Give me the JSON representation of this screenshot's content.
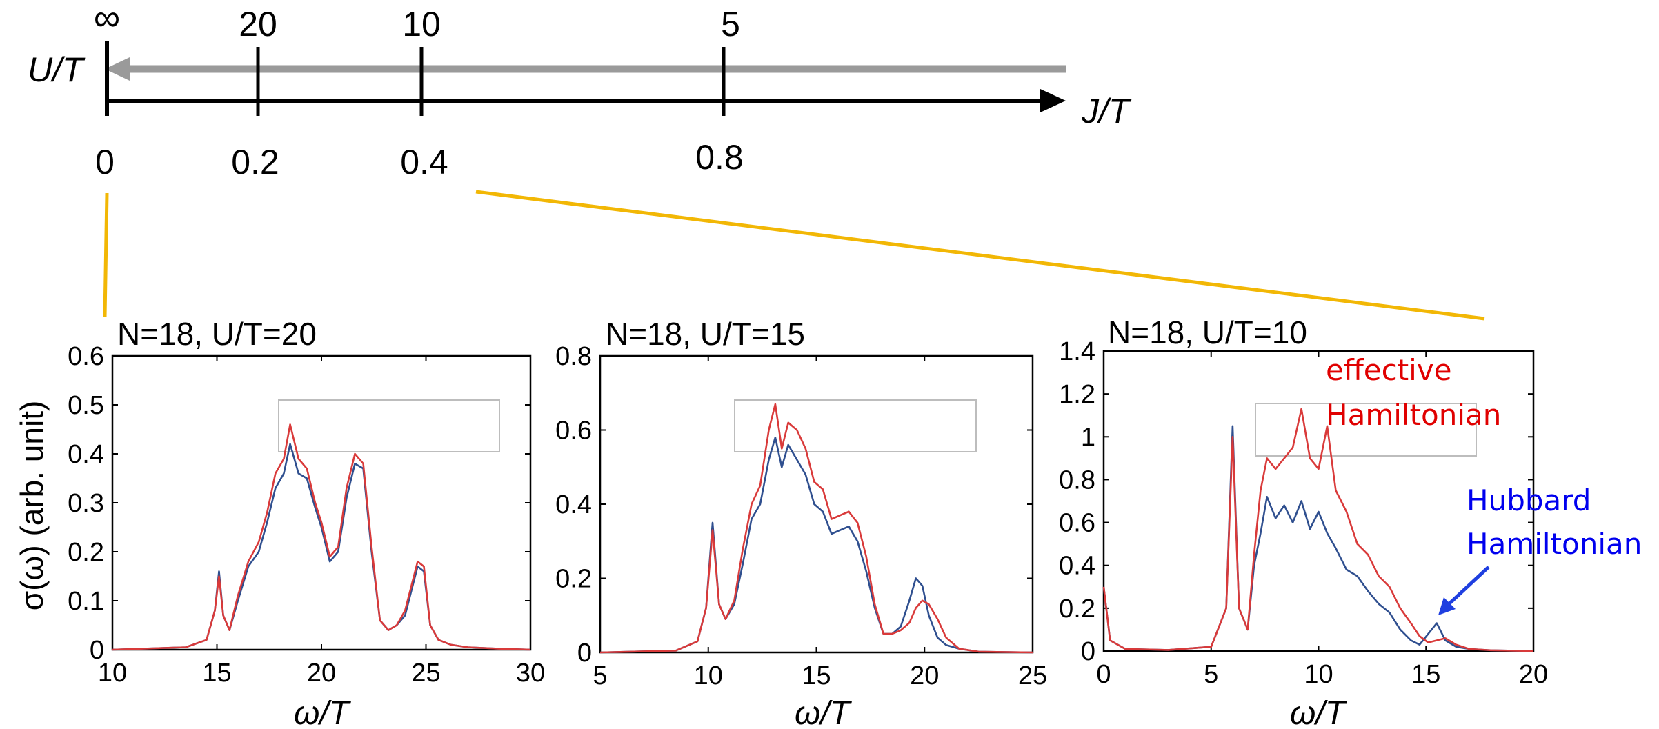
{
  "scale_bar": {
    "ut_label": "U/T",
    "jt_label": "J/T",
    "ut_ticks": [
      "∞",
      "20",
      "10",
      "5"
    ],
    "jt_ticks": [
      "0",
      "0.2",
      "0.4",
      "0.8"
    ],
    "ut_arrow_color": "#9a9a9a",
    "jt_arrow_color": "#000000",
    "connector_color": "#f2b705"
  },
  "colors": {
    "effective": "#d93a3a",
    "hubbard": "#2f4f8f",
    "annotation_effective": "#e00000",
    "annotation_hubbard": "#0000ee",
    "arrow": "#1f3fe0"
  },
  "ylabel": "σ(ω) (arb. unit)",
  "annotations": {
    "effective": [
      "effective",
      "Hamiltonian"
    ],
    "hubbard": [
      "Hubbard",
      "Hamiltonian"
    ]
  },
  "chart_data": [
    {
      "type": "line",
      "title": "N=18, U/T=20",
      "xlabel": "ω/T",
      "ylabel": "σ(ω) (arb. unit)",
      "xlim": [
        10,
        30
      ],
      "ylim": [
        0,
        0.6
      ],
      "xticks": [
        10,
        15,
        20,
        25,
        30
      ],
      "yticks": [
        0,
        0.1,
        0.2,
        0.3,
        0.4,
        0.5,
        0.6
      ],
      "series": [
        {
          "key": "hubbard",
          "x": [
            10,
            13.5,
            14.5,
            14.9,
            15.1,
            15.3,
            15.6,
            16.0,
            16.5,
            17.0,
            17.4,
            17.8,
            18.2,
            18.5,
            18.9,
            19.3,
            19.7,
            20.0,
            20.4,
            20.8,
            21.2,
            21.6,
            22.0,
            22.4,
            22.8,
            23.2,
            23.6,
            24.0,
            24.3,
            24.6,
            24.9,
            25.2,
            25.6,
            26.2,
            27.0,
            28.5,
            30
          ],
          "y": [
            0.0,
            0.005,
            0.02,
            0.08,
            0.16,
            0.07,
            0.04,
            0.1,
            0.17,
            0.2,
            0.26,
            0.33,
            0.36,
            0.42,
            0.36,
            0.35,
            0.29,
            0.25,
            0.18,
            0.2,
            0.31,
            0.38,
            0.37,
            0.2,
            0.06,
            0.04,
            0.05,
            0.07,
            0.12,
            0.17,
            0.16,
            0.05,
            0.02,
            0.01,
            0.005,
            0.002,
            0.0
          ]
        },
        {
          "key": "effective",
          "x": [
            10,
            13.5,
            14.5,
            14.9,
            15.1,
            15.3,
            15.6,
            16.0,
            16.5,
            17.0,
            17.4,
            17.8,
            18.2,
            18.5,
            18.9,
            19.3,
            19.7,
            20.0,
            20.4,
            20.8,
            21.2,
            21.6,
            22.0,
            22.4,
            22.8,
            23.2,
            23.6,
            24.0,
            24.3,
            24.6,
            24.9,
            25.2,
            25.6,
            26.2,
            27.0,
            28.5,
            30
          ],
          "y": [
            0.0,
            0.005,
            0.02,
            0.08,
            0.15,
            0.07,
            0.04,
            0.11,
            0.18,
            0.22,
            0.28,
            0.36,
            0.39,
            0.46,
            0.39,
            0.37,
            0.3,
            0.26,
            0.19,
            0.21,
            0.33,
            0.4,
            0.38,
            0.21,
            0.06,
            0.04,
            0.05,
            0.08,
            0.13,
            0.18,
            0.17,
            0.05,
            0.02,
            0.01,
            0.005,
            0.002,
            0.0
          ]
        }
      ]
    },
    {
      "type": "line",
      "title": "N=18, U/T=15",
      "xlabel": "ω/T",
      "ylabel": "",
      "xlim": [
        5,
        25
      ],
      "ylim": [
        0,
        0.8
      ],
      "xticks": [
        5,
        10,
        15,
        20,
        25
      ],
      "yticks": [
        0,
        0.2,
        0.4,
        0.6,
        0.8
      ],
      "series": [
        {
          "key": "hubbard",
          "x": [
            5,
            8.5,
            9.5,
            9.9,
            10.2,
            10.5,
            10.8,
            11.2,
            11.6,
            12.0,
            12.4,
            12.8,
            13.1,
            13.4,
            13.7,
            14.1,
            14.5,
            14.9,
            15.3,
            15.7,
            16.1,
            16.5,
            16.9,
            17.3,
            17.7,
            18.1,
            18.5,
            18.9,
            19.3,
            19.6,
            19.9,
            20.2,
            20.6,
            21.0,
            21.6,
            22.5,
            25
          ],
          "y": [
            0.0,
            0.005,
            0.03,
            0.12,
            0.35,
            0.13,
            0.09,
            0.13,
            0.24,
            0.36,
            0.4,
            0.52,
            0.58,
            0.5,
            0.56,
            0.52,
            0.48,
            0.4,
            0.38,
            0.32,
            0.33,
            0.34,
            0.3,
            0.22,
            0.12,
            0.05,
            0.05,
            0.07,
            0.14,
            0.2,
            0.18,
            0.1,
            0.04,
            0.02,
            0.01,
            0.002,
            0.0
          ]
        },
        {
          "key": "effective",
          "x": [
            5,
            8.5,
            9.5,
            9.9,
            10.2,
            10.5,
            10.8,
            11.2,
            11.6,
            12.0,
            12.4,
            12.8,
            13.1,
            13.4,
            13.7,
            14.1,
            14.5,
            14.9,
            15.3,
            15.7,
            16.1,
            16.5,
            16.9,
            17.3,
            17.7,
            18.1,
            18.5,
            18.9,
            19.3,
            19.6,
            19.9,
            20.2,
            20.6,
            21.0,
            21.6,
            22.5,
            25
          ],
          "y": [
            0.0,
            0.005,
            0.03,
            0.12,
            0.33,
            0.13,
            0.09,
            0.14,
            0.28,
            0.4,
            0.45,
            0.6,
            0.67,
            0.55,
            0.62,
            0.6,
            0.55,
            0.46,
            0.44,
            0.36,
            0.37,
            0.38,
            0.35,
            0.26,
            0.13,
            0.05,
            0.05,
            0.06,
            0.08,
            0.12,
            0.14,
            0.13,
            0.09,
            0.04,
            0.01,
            0.002,
            0.0
          ]
        }
      ]
    },
    {
      "type": "line",
      "title": "N=18, U/T=10",
      "xlabel": "ω/T",
      "ylabel": "",
      "xlim": [
        0,
        20
      ],
      "ylim": [
        0,
        1.4
      ],
      "xticks": [
        0,
        5,
        10,
        15,
        20
      ],
      "yticks": [
        0,
        0.2,
        0.4,
        0.6,
        0.8,
        1,
        1.2,
        1.4
      ],
      "series": [
        {
          "key": "hubbard",
          "x": [
            0,
            0.3,
            1.0,
            3.0,
            5.0,
            5.7,
            6.0,
            6.3,
            6.7,
            7.0,
            7.3,
            7.6,
            8.0,
            8.4,
            8.8,
            9.2,
            9.6,
            10.0,
            10.4,
            10.8,
            11.3,
            11.8,
            12.3,
            12.8,
            13.3,
            13.8,
            14.3,
            14.7,
            15.1,
            15.5,
            15.9,
            16.4,
            17.0,
            18.0,
            20
          ],
          "y": [
            0.3,
            0.05,
            0.01,
            0.005,
            0.02,
            0.2,
            1.05,
            0.2,
            0.1,
            0.4,
            0.55,
            0.72,
            0.62,
            0.68,
            0.6,
            0.7,
            0.57,
            0.65,
            0.55,
            0.48,
            0.38,
            0.35,
            0.28,
            0.22,
            0.18,
            0.1,
            0.05,
            0.03,
            0.08,
            0.13,
            0.05,
            0.02,
            0.01,
            0.004,
            0.0
          ]
        },
        {
          "key": "effective",
          "x": [
            0,
            0.3,
            1.0,
            3.0,
            5.0,
            5.7,
            6.0,
            6.3,
            6.7,
            7.0,
            7.3,
            7.6,
            8.0,
            8.4,
            8.8,
            9.2,
            9.6,
            10.0,
            10.4,
            10.8,
            11.3,
            11.8,
            12.3,
            12.8,
            13.3,
            13.8,
            14.3,
            14.7,
            15.1,
            15.5,
            15.9,
            16.4,
            17.0,
            18.0,
            20
          ],
          "y": [
            0.3,
            0.05,
            0.01,
            0.005,
            0.02,
            0.2,
            1.0,
            0.2,
            0.1,
            0.45,
            0.75,
            0.9,
            0.85,
            0.9,
            0.95,
            1.13,
            0.9,
            0.85,
            1.05,
            0.75,
            0.65,
            0.5,
            0.45,
            0.35,
            0.3,
            0.2,
            0.13,
            0.07,
            0.04,
            0.05,
            0.06,
            0.03,
            0.01,
            0.004,
            0.0
          ]
        }
      ]
    }
  ]
}
